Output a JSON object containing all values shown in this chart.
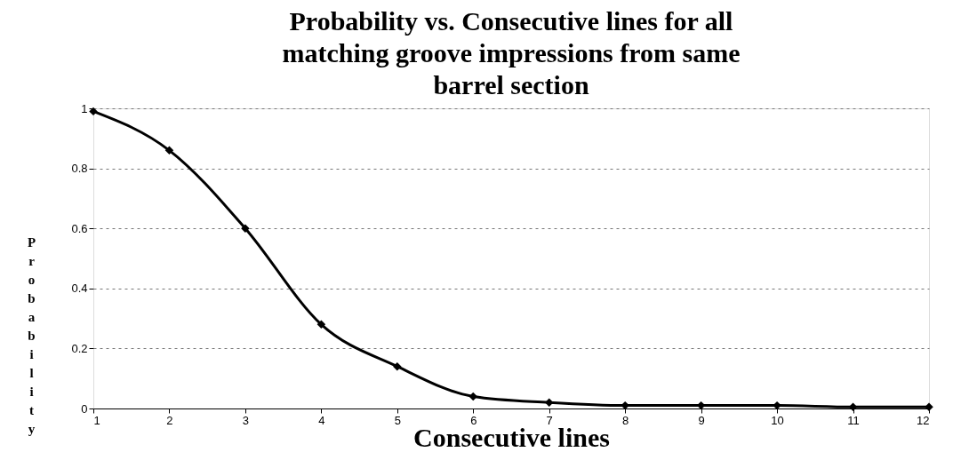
{
  "chart_data": {
    "type": "line",
    "title": "Probability vs. Consecutive lines for all matching groove impressions from same barrel section",
    "xlabel": "Consecutive lines",
    "ylabel": "Probability",
    "x": [
      1,
      2,
      3,
      4,
      5,
      6,
      7,
      8,
      9,
      10,
      11,
      12
    ],
    "series": [
      {
        "color": "#000000",
        "values": [
          0.99,
          0.86,
          0.6,
          0.28,
          0.14,
          0.04,
          0.02,
          0.01,
          0.01,
          0.01,
          0.005,
          0.005
        ]
      }
    ],
    "xlim": [
      1,
      12
    ],
    "xticks": [
      1,
      2,
      3,
      4,
      5,
      6,
      7,
      8,
      9,
      10,
      11,
      12
    ],
    "ylim": [
      0,
      1
    ],
    "yticks": [
      0,
      0.2,
      0.4,
      0.6,
      0.8,
      1
    ],
    "grid": "y",
    "marker": "diamond",
    "line_style": "solid"
  }
}
